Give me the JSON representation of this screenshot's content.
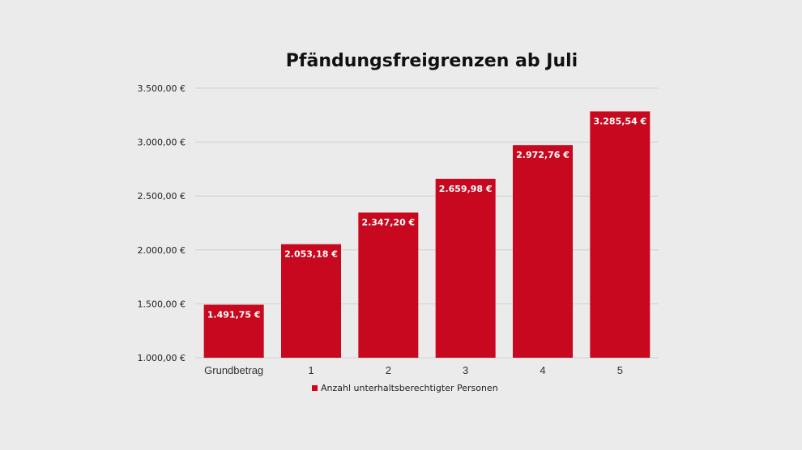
{
  "chart_data": {
    "type": "bar",
    "title": "Pfändungsfreigrenzen ab Juli",
    "categories": [
      "Grundbetrag",
      "1",
      "2",
      "3",
      "4",
      "5"
    ],
    "series": [
      {
        "name": "Anzahl unterhaltsberechtigter Personen",
        "values": [
          1491.75,
          2053.18,
          2347.2,
          2659.98,
          2972.76,
          3285.54
        ],
        "labels": [
          "1.491,75 €",
          "2.053,18 €",
          "2.347,20 €",
          "2.659,98 €",
          "2.972,76 €",
          "3.285,54 €"
        ],
        "color": "#c8081e"
      }
    ],
    "yticks": [
      "1.000,00 €",
      "1.500,00 €",
      "2.000,00 €",
      "2.500,00 €",
      "3.000,00 €",
      "3.500,00 €"
    ],
    "ylim": [
      1000,
      3500
    ],
    "grid": true,
    "legend_position": "bottom"
  }
}
